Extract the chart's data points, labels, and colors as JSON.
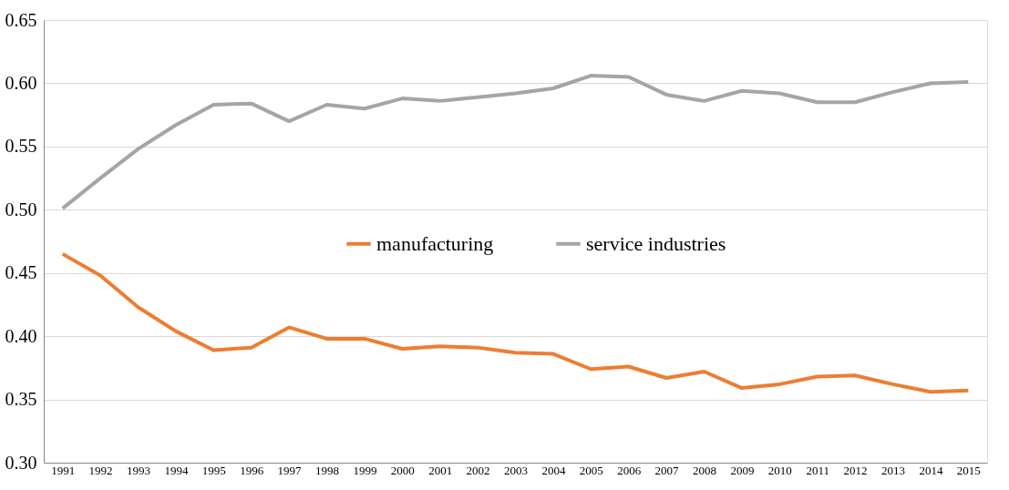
{
  "chart_data": {
    "type": "line",
    "categories": [
      "1991",
      "1992",
      "1993",
      "1994",
      "1995",
      "1996",
      "1997",
      "1998",
      "1999",
      "2000",
      "2001",
      "2002",
      "2003",
      "2004",
      "2005",
      "2006",
      "2007",
      "2008",
      "2009",
      "2010",
      "2011",
      "2012",
      "2013",
      "2014",
      "2015"
    ],
    "series": [
      {
        "name": "manufacturing",
        "color": "#ed7d31",
        "values": [
          0.465,
          0.448,
          0.423,
          0.404,
          0.389,
          0.391,
          0.407,
          0.398,
          0.398,
          0.39,
          0.392,
          0.391,
          0.387,
          0.386,
          0.374,
          0.376,
          0.367,
          0.372,
          0.359,
          0.362,
          0.368,
          0.369,
          0.362,
          0.356,
          0.357
        ]
      },
      {
        "name": "service industries",
        "color": "#a5a5a5",
        "values": [
          0.501,
          0.525,
          0.548,
          0.567,
          0.583,
          0.584,
          0.57,
          0.583,
          0.58,
          0.588,
          0.586,
          0.589,
          0.592,
          0.596,
          0.606,
          0.605,
          0.591,
          0.586,
          0.594,
          0.592,
          0.585,
          0.585,
          0.593,
          0.6,
          0.601
        ]
      }
    ],
    "ylim": [
      0.3,
      0.65
    ],
    "yticks": [
      {
        "value": 0.3,
        "label": "0.30"
      },
      {
        "value": 0.35,
        "label": "0.35"
      },
      {
        "value": 0.4,
        "label": "0.40"
      },
      {
        "value": 0.45,
        "label": "0.45"
      },
      {
        "value": 0.5,
        "label": "0.50"
      },
      {
        "value": 0.55,
        "label": "0.55"
      },
      {
        "value": 0.6,
        "label": "0.60"
      },
      {
        "value": 0.65,
        "label": "0.65"
      }
    ],
    "grid": "y",
    "legend": "center",
    "marker": "none",
    "line_style": "solid"
  }
}
